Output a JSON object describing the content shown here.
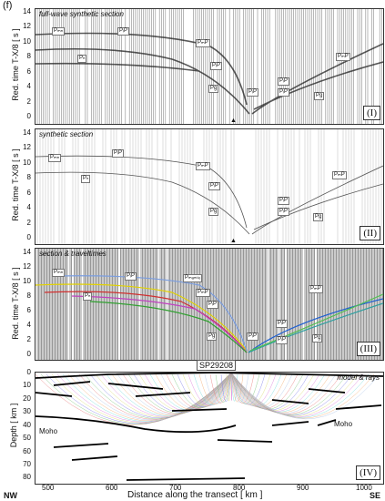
{
  "figure_label": "(f)",
  "panels": [
    {
      "id": "I",
      "title": "full-wave synthetic section",
      "roman": "(I)",
      "ylabel": "Red. time  T-X/8   [ s ]",
      "yticks": [
        "14",
        "12",
        "10",
        "8",
        "6",
        "4",
        "2",
        "0"
      ],
      "labels": [
        {
          "t": "Pₘₙ"
        },
        {
          "t": "Pₙ"
        },
        {
          "t": "PᵢP"
        },
        {
          "t": "PₘP"
        },
        {
          "t": "PᵢP"
        },
        {
          "t": "Pɡ"
        },
        {
          "t": "PᵢP"
        },
        {
          "t": "PᵢP"
        },
        {
          "t": "PᵢP"
        },
        {
          "t": "PₘP"
        },
        {
          "t": "Pɡ"
        }
      ]
    },
    {
      "id": "II",
      "title": "synthetic section",
      "roman": "(II)",
      "ylabel": "Red. time  T-X/8   [ s ]",
      "yticks": [
        "14",
        "12",
        "10",
        "8",
        "6",
        "4",
        "2",
        "0"
      ],
      "labels": [
        {
          "t": "Pₘₙ"
        },
        {
          "t": "Pₙ"
        },
        {
          "t": "PᵢP"
        },
        {
          "t": "PₘP"
        },
        {
          "t": "PᵢP"
        },
        {
          "t": "Pɡ"
        },
        {
          "t": "PᵢP"
        },
        {
          "t": "PᵢP"
        },
        {
          "t": "PₘP"
        },
        {
          "t": "Pɡ"
        }
      ]
    },
    {
      "id": "III",
      "title": "section & traveltimes",
      "roman": "(III)",
      "ylabel": "Red. time  T-X/8   [ s ]",
      "yticks": [
        "14",
        "12",
        "10",
        "8",
        "6",
        "4",
        "2",
        "0"
      ],
      "labels": [
        {
          "t": "Pₘₙ"
        },
        {
          "t": "Pₙ"
        },
        {
          "t": "PᵢP"
        },
        {
          "t": "Pₘₐₙₜₗₑ"
        },
        {
          "t": "PₘP"
        },
        {
          "t": "PᵢP"
        },
        {
          "t": "Pɡ"
        },
        {
          "t": "PᵢP"
        },
        {
          "t": "PᵢP"
        },
        {
          "t": "PᵢP"
        },
        {
          "t": "PₘP"
        },
        {
          "t": "Pɡ"
        }
      ]
    },
    {
      "id": "IV",
      "title": "model & rays",
      "roman": "(IV)",
      "ylabel": "Depth  [ km ]",
      "yticks": [
        "0",
        "10",
        "20",
        "30",
        "40",
        "50",
        "60",
        "70",
        "80"
      ],
      "labels": [
        {
          "t": "Moho"
        },
        {
          "t": "Moho"
        }
      ]
    }
  ],
  "shotpoint": "SP29208",
  "xaxis": {
    "label": "Distance along the transect   [ km ]",
    "ticks": [
      "500",
      "600",
      "700",
      "800",
      "900",
      "1000"
    ],
    "left": "NW",
    "right": "SE"
  }
}
